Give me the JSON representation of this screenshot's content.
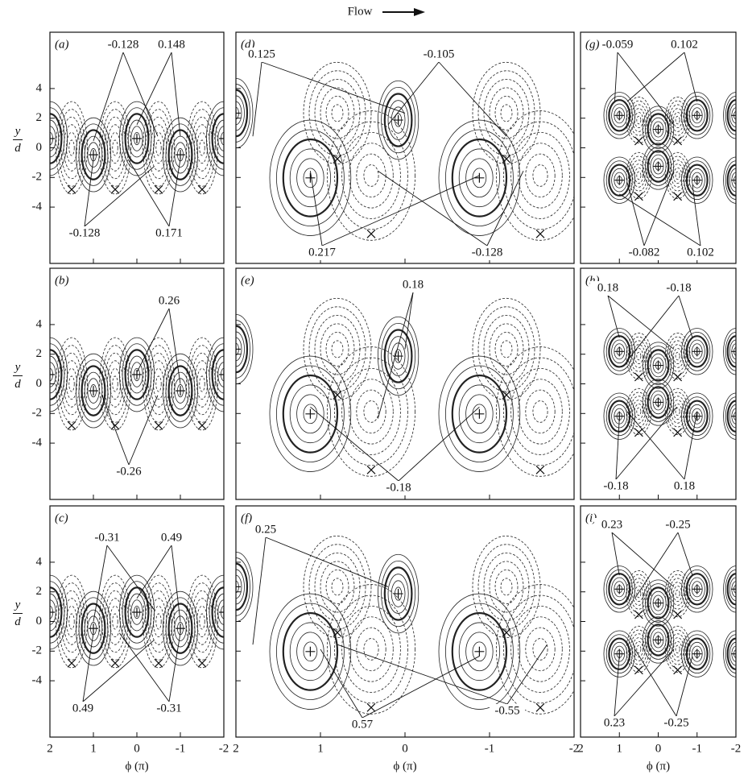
{
  "flow_label": "Flow",
  "chart_data": [
    {
      "type": "contour",
      "panel": "(a)",
      "xlim": [
        2,
        -2
      ],
      "ylim": [
        -7.8,
        7.8
      ],
      "xticks": [
        2,
        1,
        0,
        -1,
        -2
      ],
      "yticks": [
        4,
        2,
        0,
        -2,
        -4
      ],
      "ylabel": {
        "num": "y",
        "den": "d"
      },
      "annotations": [
        "-0.128",
        "0.148",
        "-0.128",
        "0.171"
      ]
    },
    {
      "type": "contour",
      "panel": "(b)",
      "xlim": [
        2,
        -2
      ],
      "ylim": [
        -7.8,
        7.8
      ],
      "xticks": [
        2,
        1,
        0,
        -1,
        -2
      ],
      "yticks": [
        4,
        2,
        0,
        -2,
        -4
      ],
      "ylabel": {
        "num": "y",
        "den": "d"
      },
      "annotations": [
        "0.26",
        "-0.26"
      ]
    },
    {
      "type": "contour",
      "panel": "(c)",
      "xlim": [
        2,
        -2
      ],
      "ylim": [
        -7.8,
        7.8
      ],
      "xticks": [
        2,
        1,
        0,
        -1,
        -2
      ],
      "yticks": [
        4,
        2,
        0,
        -2,
        -4
      ],
      "ylabel": {
        "num": "y",
        "den": "d"
      },
      "xlabel": "ϕ (π)",
      "annotations": [
        "-0.31",
        "0.49",
        "0.49",
        "-0.31"
      ]
    },
    {
      "type": "contour",
      "panel": "(d)",
      "xlim": [
        2,
        -2
      ],
      "ylim": [
        -7.8,
        7.8
      ],
      "xticks": [
        2,
        1,
        0,
        -1,
        -2
      ],
      "yticks": [
        4,
        2,
        0,
        -2,
        -4
      ],
      "annotations": [
        "0.125",
        "-0.105",
        "0.217",
        "-0.128"
      ]
    },
    {
      "type": "contour",
      "panel": "(e)",
      "xlim": [
        2,
        -2
      ],
      "ylim": [
        -7.8,
        7.8
      ],
      "xticks": [
        2,
        1,
        0,
        -1,
        -2
      ],
      "yticks": [
        4,
        2,
        0,
        -2,
        -4
      ],
      "annotations": [
        "0.18",
        "-0.18"
      ]
    },
    {
      "type": "contour",
      "panel": "(f)",
      "xlim": [
        2,
        -2
      ],
      "ylim": [
        -7.8,
        7.8
      ],
      "xticks": [
        2,
        1,
        0,
        -1,
        -2
      ],
      "yticks": [
        4,
        2,
        0,
        -2,
        -4
      ],
      "xlabel": "ϕ (π)",
      "annotations": [
        "0.25",
        "0.57",
        "-0.55"
      ]
    },
    {
      "type": "contour",
      "panel": "(g)",
      "xlim": [
        2,
        -2
      ],
      "ylim": [
        -7.8,
        7.8
      ],
      "xticks": [
        2,
        1,
        0,
        -1,
        -2
      ],
      "yticks": [
        4,
        2,
        0,
        -2,
        -4
      ],
      "annotations": [
        "-0.059",
        "0.102",
        "-0.082",
        "0.102"
      ]
    },
    {
      "type": "contour",
      "panel": "(h)",
      "xlim": [
        2,
        -2
      ],
      "ylim": [
        -7.8,
        7.8
      ],
      "xticks": [
        2,
        1,
        0,
        -1,
        -2
      ],
      "yticks": [
        4,
        2,
        0,
        -2,
        -4
      ],
      "annotations": [
        "0.18",
        "-0.18",
        "-0.18",
        "0.18"
      ]
    },
    {
      "type": "contour",
      "panel": "(i)",
      "xlim": [
        2,
        -2
      ],
      "ylim": [
        -7.8,
        7.8
      ],
      "xticks": [
        2,
        1,
        0,
        -1,
        -2
      ],
      "yticks": [
        4,
        2,
        0,
        -2,
        -4
      ],
      "xlabel": "ϕ (π)",
      "annotations": [
        "0.23",
        "-0.25",
        "0.23",
        "-0.25"
      ]
    }
  ]
}
